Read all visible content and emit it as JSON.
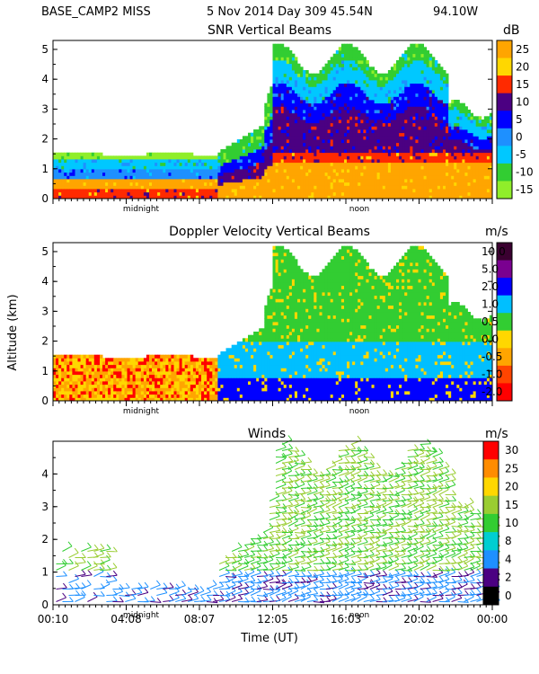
{
  "header": {
    "station": "BASE_CAMP2 MISS",
    "date": "5 Nov 2014 Day 309 45.54N",
    "lon": "94.10W"
  },
  "shared": {
    "ylabel": "Altitude (km)",
    "xlabel": "Time (UT)",
    "yticks": [
      "0",
      "1",
      "2",
      "3",
      "4",
      "5"
    ],
    "wind_yticks": [
      "0",
      "1",
      "2",
      "3",
      "4"
    ],
    "time_ticks": [
      "00:10",
      "04:08",
      "08:07",
      "12:05",
      "16:03",
      "20:02",
      "00:00"
    ],
    "markers": [
      "midnight",
      "noon"
    ]
  },
  "chart_data": [
    {
      "type": "heatmap",
      "title": "SNR Vertical Beams",
      "unit": "dB",
      "ylim": [
        0,
        5.3
      ],
      "colorbar_labels": [
        "25",
        "20",
        "15",
        "10",
        "5",
        "0",
        "-5",
        "-10",
        "-15"
      ],
      "colorbar_values": [
        25,
        20,
        15,
        10,
        5,
        0,
        -5,
        -10,
        -15
      ],
      "colors": [
        "#ffa500",
        "#ffd700",
        "#ff2a00",
        "#4b0082",
        "#0000ff",
        "#1e90ff",
        "#00c8ff",
        "#32cd32",
        "#90ee2a"
      ]
    },
    {
      "type": "heatmap",
      "title": "Doppler Velocity Vertical Beams",
      "unit": "m/s",
      "ylim": [
        0,
        5.3
      ],
      "colorbar_labels": [
        "10.0",
        "5.0",
        "2.0",
        "1.0",
        "0.5",
        "0.0",
        "-0.5",
        "-1.0",
        "-2.0"
      ],
      "colorbar_values": [
        10.0,
        5.0,
        2.0,
        1.0,
        0.5,
        0.0,
        -0.5,
        -1.0,
        -2.0
      ],
      "colors": [
        "#3a0030",
        "#7a0090",
        "#0000ff",
        "#00bfff",
        "#32cd32",
        "#ffd700",
        "#ffa500",
        "#ff4500",
        "#ff0000"
      ]
    },
    {
      "type": "heatmap",
      "title": "Winds",
      "unit": "m/s",
      "ylim": [
        0,
        5
      ],
      "colorbar_labels": [
        "30",
        "25",
        "20",
        "15",
        "10",
        "8",
        "4",
        "2",
        "0"
      ],
      "colorbar_values": [
        30,
        25,
        20,
        15,
        10,
        8,
        4,
        2,
        0
      ],
      "colors": [
        "#ff0000",
        "#ff8c00",
        "#ffd700",
        "#9acd32",
        "#32cd32",
        "#00ced1",
        "#1e90ff",
        "#4b0082",
        "#000000"
      ]
    }
  ]
}
